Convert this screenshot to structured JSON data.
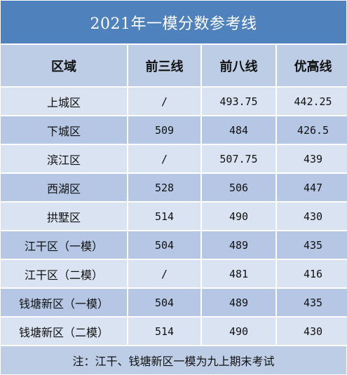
{
  "table": {
    "title": "2021年一模分数参考线",
    "headers": [
      "区域",
      "前三线",
      "前八线",
      "优高线"
    ],
    "rows": [
      [
        "上城区",
        "/",
        "493.75",
        "442.25"
      ],
      [
        "下城区",
        "509",
        "484",
        "426.5"
      ],
      [
        "滨江区",
        "/",
        "507.75",
        "439"
      ],
      [
        "西湖区",
        "528",
        "506",
        "447"
      ],
      [
        "拱墅区",
        "514",
        "490",
        "430"
      ],
      [
        "江干区（一模）",
        "504",
        "489",
        "435"
      ],
      [
        "江干区（二模）",
        "/",
        "481",
        "416"
      ],
      [
        "钱塘新区（一模）",
        "504",
        "489",
        "435"
      ],
      [
        "钱塘新区（二模）",
        "514",
        "490",
        "430"
      ]
    ],
    "note": "注：江干、钱塘新区一模为九上期末考试"
  },
  "colors": {
    "title_bg": "#4f81bd",
    "header_bg": "#bdcde6",
    "row_light": "#dae3f1",
    "row_dark": "#b5c7e4"
  }
}
